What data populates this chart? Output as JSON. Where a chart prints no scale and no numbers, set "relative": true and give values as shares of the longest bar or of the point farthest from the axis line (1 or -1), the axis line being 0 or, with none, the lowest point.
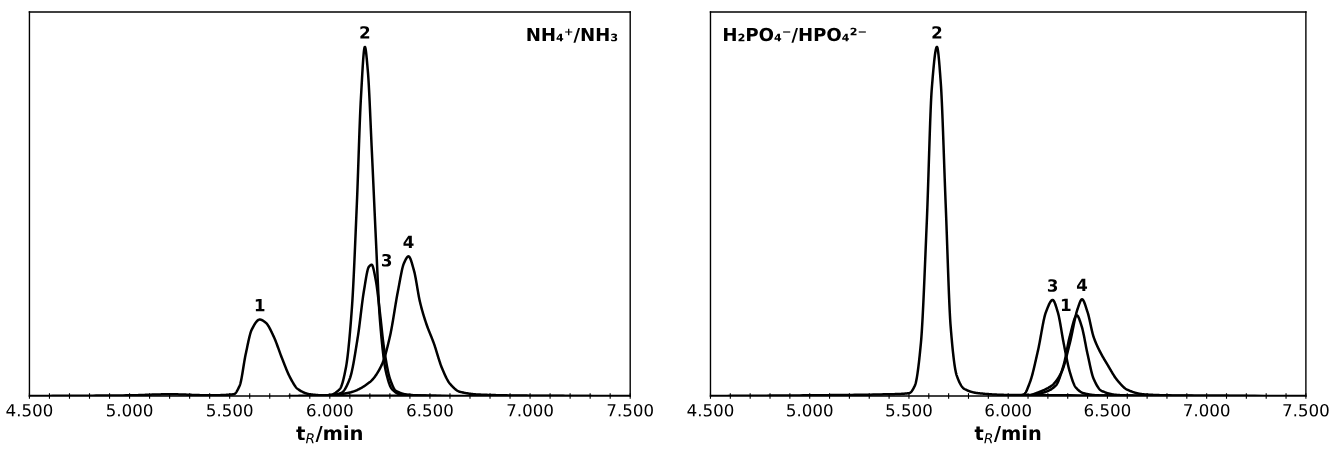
{
  "chart_data": [
    {
      "type": "line",
      "title": "NH₄⁺/NH₃",
      "xlabel": "t$_{R}$/min",
      "relative": true,
      "xlim": [
        4.5,
        7.5
      ],
      "xticks": [
        {
          "value": 4.5,
          "label": "4.500"
        },
        {
          "value": 4.6,
          "label": null
        },
        {
          "value": 4.7,
          "label": null
        },
        {
          "value": 4.8,
          "label": null
        },
        {
          "value": 4.9,
          "label": null
        },
        {
          "value": 5.0,
          "label": "5.000"
        },
        {
          "value": 5.1,
          "label": null
        },
        {
          "value": 5.2,
          "label": null
        },
        {
          "value": 5.3,
          "label": null
        },
        {
          "value": 5.4,
          "label": null
        },
        {
          "value": 5.5,
          "label": "5.500"
        },
        {
          "value": 5.6,
          "label": null
        },
        {
          "value": 5.7,
          "label": null
        },
        {
          "value": 5.8,
          "label": null
        },
        {
          "value": 5.9,
          "label": null
        },
        {
          "value": 6.0,
          "label": "6.000"
        },
        {
          "value": 6.1,
          "label": null
        },
        {
          "value": 6.2,
          "label": null
        },
        {
          "value": 6.3,
          "label": null
        },
        {
          "value": 6.4,
          "label": null
        },
        {
          "value": 6.5,
          "label": "6.500"
        },
        {
          "value": 6.6,
          "label": null
        },
        {
          "value": 6.7,
          "label": null
        },
        {
          "value": 6.8,
          "label": null
        },
        {
          "value": 6.9,
          "label": null
        },
        {
          "value": 7.0,
          "label": "7.000"
        },
        {
          "value": 7.1,
          "label": null
        },
        {
          "value": 7.2,
          "label": null
        },
        {
          "value": 7.3,
          "label": null
        },
        {
          "value": 7.4,
          "label": null
        },
        {
          "value": 7.5,
          "label": "7.500"
        }
      ],
      "tick_labels": "x",
      "grid": false,
      "legend": false,
      "series": [
        {
          "name": "1",
          "color": "#000000",
          "x": [
            4.5,
            5.0,
            5.2,
            5.4,
            5.52,
            5.55,
            5.58,
            5.61,
            5.65,
            5.68,
            5.72,
            5.76,
            5.8,
            5.84,
            5.9,
            6.0,
            7.5
          ],
          "values": [
            0,
            0.002,
            0.005,
            0.002,
            0.005,
            0.03,
            0.12,
            0.19,
            0.219,
            0.21,
            0.17,
            0.11,
            0.055,
            0.02,
            0.005,
            0.001,
            0
          ]
        },
        {
          "name": "2",
          "color": "#000000",
          "x": [
            5.9,
            6.0,
            6.05,
            6.08,
            6.11,
            6.135,
            6.155,
            6.175,
            6.19,
            6.21,
            6.23,
            6.25,
            6.28,
            6.31,
            6.35,
            6.5
          ],
          "values": [
            0,
            0.003,
            0.02,
            0.08,
            0.25,
            0.55,
            0.85,
            1.0,
            0.93,
            0.7,
            0.45,
            0.22,
            0.07,
            0.02,
            0.005,
            0
          ]
        },
        {
          "name": "3",
          "color": "#000000",
          "x": [
            6.0,
            6.06,
            6.1,
            6.14,
            6.17,
            6.195,
            6.209,
            6.23,
            6.25,
            6.27,
            6.3,
            6.33,
            6.4,
            6.55
          ],
          "values": [
            0,
            0.01,
            0.05,
            0.17,
            0.3,
            0.37,
            0.376,
            0.33,
            0.24,
            0.14,
            0.05,
            0.015,
            0.003,
            0
          ]
        },
        {
          "name": "4",
          "color": "#000000",
          "x": [
            5.8,
            6.0,
            6.1,
            6.2,
            6.26,
            6.3,
            6.34,
            6.37,
            6.393,
            6.42,
            6.45,
            6.48,
            6.52,
            6.56,
            6.6,
            6.65,
            6.75,
            7.0,
            7.3
          ],
          "values": [
            0,
            0.002,
            0.01,
            0.04,
            0.09,
            0.17,
            0.3,
            0.38,
            0.4,
            0.36,
            0.27,
            0.21,
            0.15,
            0.08,
            0.035,
            0.012,
            0.004,
            0.001,
            0
          ]
        }
      ]
    },
    {
      "type": "line",
      "title": "H₂PO₄⁻/HPO₄²⁻",
      "xlabel": "t$_{R}$/min",
      "relative": true,
      "xlim": [
        4.5,
        7.5
      ],
      "xticks": [
        {
          "value": 4.5,
          "label": "4.500"
        },
        {
          "value": 4.6,
          "label": null
        },
        {
          "value": 4.7,
          "label": null
        },
        {
          "value": 4.8,
          "label": null
        },
        {
          "value": 4.9,
          "label": null
        },
        {
          "value": 5.0,
          "label": "5.000"
        },
        {
          "value": 5.1,
          "label": null
        },
        {
          "value": 5.2,
          "label": null
        },
        {
          "value": 5.3,
          "label": null
        },
        {
          "value": 5.4,
          "label": null
        },
        {
          "value": 5.5,
          "label": "5.500"
        },
        {
          "value": 5.6,
          "label": null
        },
        {
          "value": 5.7,
          "label": null
        },
        {
          "value": 5.8,
          "label": null
        },
        {
          "value": 5.9,
          "label": null
        },
        {
          "value": 6.0,
          "label": "6.000"
        },
        {
          "value": 6.1,
          "label": null
        },
        {
          "value": 6.2,
          "label": null
        },
        {
          "value": 6.3,
          "label": null
        },
        {
          "value": 6.4,
          "label": null
        },
        {
          "value": 6.5,
          "label": "6.500"
        },
        {
          "value": 6.6,
          "label": null
        },
        {
          "value": 6.7,
          "label": null
        },
        {
          "value": 6.8,
          "label": null
        },
        {
          "value": 6.9,
          "label": null
        },
        {
          "value": 7.0,
          "label": "7.000"
        },
        {
          "value": 7.1,
          "label": null
        },
        {
          "value": 7.2,
          "label": null
        },
        {
          "value": 7.3,
          "label": null
        },
        {
          "value": 7.4,
          "label": null
        },
        {
          "value": 7.5,
          "label": "7.500"
        }
      ],
      "tick_labels": "x",
      "grid": false,
      "legend": false,
      "series": [
        {
          "name": "2",
          "color": "#000000",
          "x": [
            4.5,
            5.0,
            5.4,
            5.5,
            5.53,
            5.56,
            5.59,
            5.615,
            5.641,
            5.66,
            5.685,
            5.71,
            5.74,
            5.78,
            5.85,
            6.0,
            7.5
          ],
          "values": [
            0,
            0.002,
            0.005,
            0.008,
            0.03,
            0.15,
            0.5,
            0.88,
            1.0,
            0.9,
            0.55,
            0.2,
            0.06,
            0.02,
            0.008,
            0.003,
            0
          ]
        },
        {
          "name": "3",
          "color": "#000000",
          "x": [
            6.05,
            6.08,
            6.11,
            6.15,
            6.19,
            6.224,
            6.25,
            6.28,
            6.31,
            6.34,
            6.38,
            6.45,
            6.6
          ],
          "values": [
            0,
            0.005,
            0.04,
            0.13,
            0.24,
            0.275,
            0.24,
            0.15,
            0.07,
            0.025,
            0.008,
            0.002,
            0
          ]
        },
        {
          "name": "1",
          "color": "#000000",
          "x": [
            6.1,
            6.18,
            6.24,
            6.28,
            6.31,
            6.346,
            6.37,
            6.4,
            6.43,
            6.47,
            6.55,
            6.7
          ],
          "values": [
            0,
            0.01,
            0.03,
            0.09,
            0.17,
            0.231,
            0.2,
            0.12,
            0.05,
            0.015,
            0.003,
            0
          ]
        },
        {
          "name": "4",
          "color": "#000000",
          "x": [
            6.1,
            6.15,
            6.22,
            6.27,
            6.31,
            6.35,
            6.372,
            6.4,
            6.43,
            6.46,
            6.5,
            6.55,
            6.6,
            6.68,
            6.8,
            7.2
          ],
          "values": [
            0,
            0.01,
            0.03,
            0.07,
            0.15,
            0.25,
            0.277,
            0.24,
            0.17,
            0.13,
            0.09,
            0.045,
            0.018,
            0.005,
            0.002,
            0
          ]
        }
      ]
    }
  ]
}
